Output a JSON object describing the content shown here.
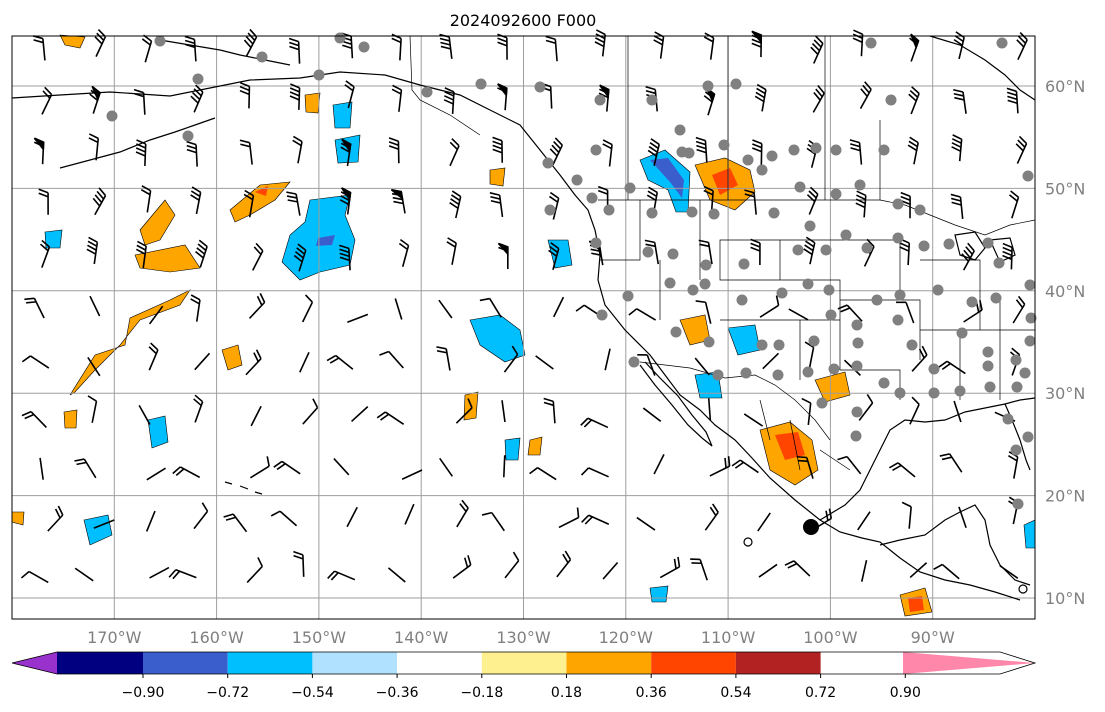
{
  "title": "2024092600 F000",
  "map": {
    "lon_range": [
      -180,
      -80
    ],
    "lat_range": [
      8,
      65
    ],
    "grid": true,
    "lat_labels": [
      "60°N",
      "50°N",
      "40°N",
      "30°N",
      "20°N",
      "10°N"
    ],
    "lat_values": [
      60,
      50,
      40,
      30,
      20,
      10
    ],
    "lon_labels": [
      "170°W",
      "160°W",
      "150°W",
      "140°W",
      "130°W",
      "120°W",
      "110°W",
      "100°W",
      "90°W"
    ],
    "lon_values": [
      -170,
      -160,
      -150,
      -140,
      -130,
      -120,
      -110,
      -100,
      -90
    ],
    "colors": {
      "grid": "#9e9e9e",
      "coast": "#000000",
      "station": "#808080",
      "barb": "#000000"
    }
  },
  "colorbar": {
    "labels": [
      "−0.90",
      "−0.72",
      "−0.54",
      "−0.36",
      "−0.18",
      "0.18",
      "0.36",
      "0.54",
      "0.72",
      "0.90"
    ],
    "colors": [
      "#9932cc",
      "#000080",
      "#3a5fcd",
      "#00bfff",
      "#b0e2ff",
      "#ffffff",
      "#fff08f",
      "#ffa500",
      "#ff4500",
      "#b22222",
      "#ff88aa"
    ]
  }
}
